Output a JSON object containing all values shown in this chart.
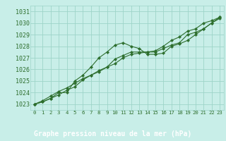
{
  "title": "Graphe pression niveau de la mer (hPa)",
  "bg_color": "#c8eee8",
  "plot_bg_color": "#c8eee8",
  "title_bg_color": "#1a5c1a",
  "title_text_color": "#ffffff",
  "line_color": "#2d6e2d",
  "marker_color": "#2d6e2d",
  "grid_color": "#9dd4c8",
  "ylim": [
    1022.5,
    1031.5
  ],
  "xlim": [
    -0.5,
    23.5
  ],
  "yticks": [
    1023,
    1024,
    1025,
    1026,
    1027,
    1028,
    1029,
    1030,
    1031
  ],
  "xticks": [
    0,
    1,
    2,
    3,
    4,
    5,
    6,
    7,
    8,
    9,
    10,
    11,
    12,
    13,
    14,
    15,
    16,
    17,
    18,
    19,
    20,
    21,
    22,
    23
  ],
  "series1_x": [
    0,
    1,
    2,
    3,
    4,
    5,
    6,
    7,
    8,
    9,
    10,
    11,
    12,
    13,
    14,
    15,
    16,
    17,
    18,
    19,
    20,
    21,
    22,
    23
  ],
  "series1": [
    1023.0,
    1023.2,
    1023.5,
    1024.0,
    1024.0,
    1025.0,
    1025.5,
    1026.2,
    1027.0,
    1027.5,
    1028.1,
    1028.3,
    1028.0,
    1027.8,
    1027.3,
    1027.3,
    1027.4,
    1028.0,
    1028.2,
    1028.5,
    1029.0,
    1029.5,
    1030.0,
    1030.4
  ],
  "series2": [
    1023.0,
    1023.2,
    1023.5,
    1023.8,
    1024.2,
    1024.5,
    1025.1,
    1025.5,
    1025.8,
    1026.2,
    1026.9,
    1027.2,
    1027.5,
    1027.5,
    1027.5,
    1027.5,
    1027.8,
    1028.1,
    1028.3,
    1029.0,
    1029.2,
    1029.5,
    1030.0,
    1030.5
  ],
  "series3": [
    1023.0,
    1023.3,
    1023.7,
    1024.1,
    1024.4,
    1024.8,
    1025.2,
    1025.5,
    1025.9,
    1026.2,
    1026.5,
    1027.0,
    1027.3,
    1027.4,
    1027.5,
    1027.6,
    1028.0,
    1028.5,
    1028.8,
    1029.3,
    1029.5,
    1030.0,
    1030.2,
    1030.5
  ],
  "tick_fontsize": 6.0,
  "xlabel_fontsize": 7.0
}
